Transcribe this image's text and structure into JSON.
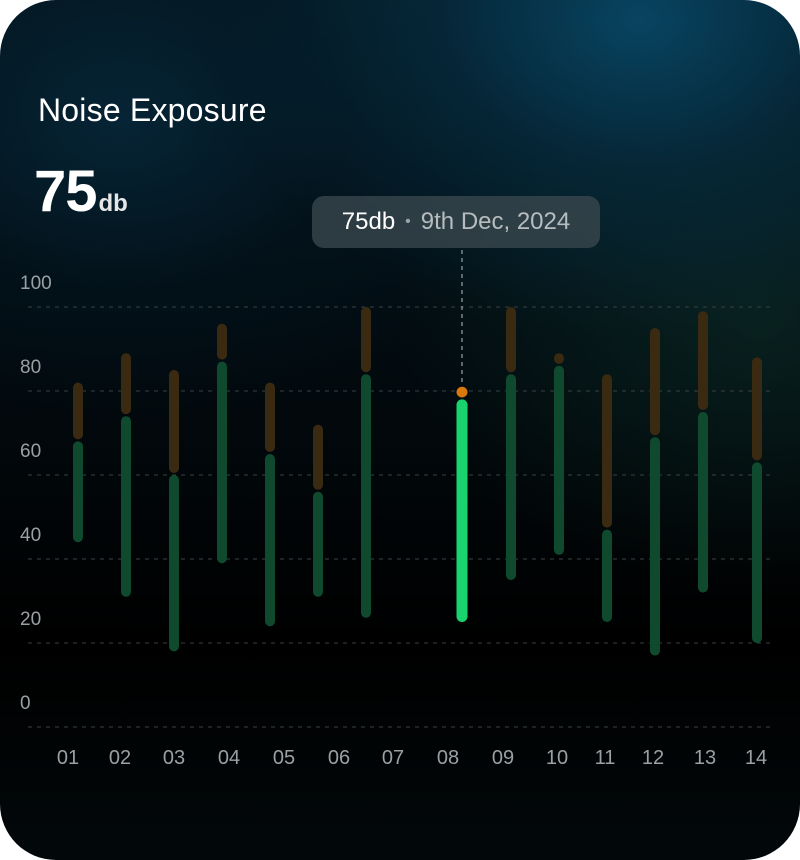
{
  "card": {
    "title": "Noise Exposure",
    "value": "75",
    "unit": "db"
  },
  "tooltip": {
    "value": "75db",
    "separator": "•",
    "date": "9th Dec, 2024"
  },
  "colors": {
    "highlight_upper": "#d9780d",
    "highlight_lower": "#19d46e",
    "bar_upper": "#3b2a12",
    "bar_lower": "#0f4a2e",
    "grid": "#3a4043",
    "label": "#9aa0a3"
  },
  "chart_data": {
    "type": "bar",
    "title": "Noise Exposure",
    "xlabel": "",
    "ylabel": "",
    "ylim": [
      0,
      100
    ],
    "yticks": [
      0,
      20,
      40,
      60,
      80,
      100
    ],
    "grid": true,
    "categories": [
      "01",
      "02",
      "03",
      "04",
      "05",
      "06",
      "07",
      "08",
      "09",
      "10",
      "11",
      "12",
      "13",
      "14"
    ],
    "highlighted_index": 7,
    "series": [
      {
        "low": [
          44,
          31,
          18,
          39,
          24,
          31,
          26,
          25,
          35,
          41,
          25,
          17,
          32,
          20
        ],
        "mid": [
          68,
          74,
          60,
          87,
          65,
          56,
          84,
          78,
          84,
          86,
          47,
          69,
          75,
          63
        ],
        "high": [
          82,
          89,
          85,
          96,
          82,
          72,
          100,
          81,
          100,
          89,
          84,
          95,
          99,
          88
        ]
      }
    ]
  }
}
